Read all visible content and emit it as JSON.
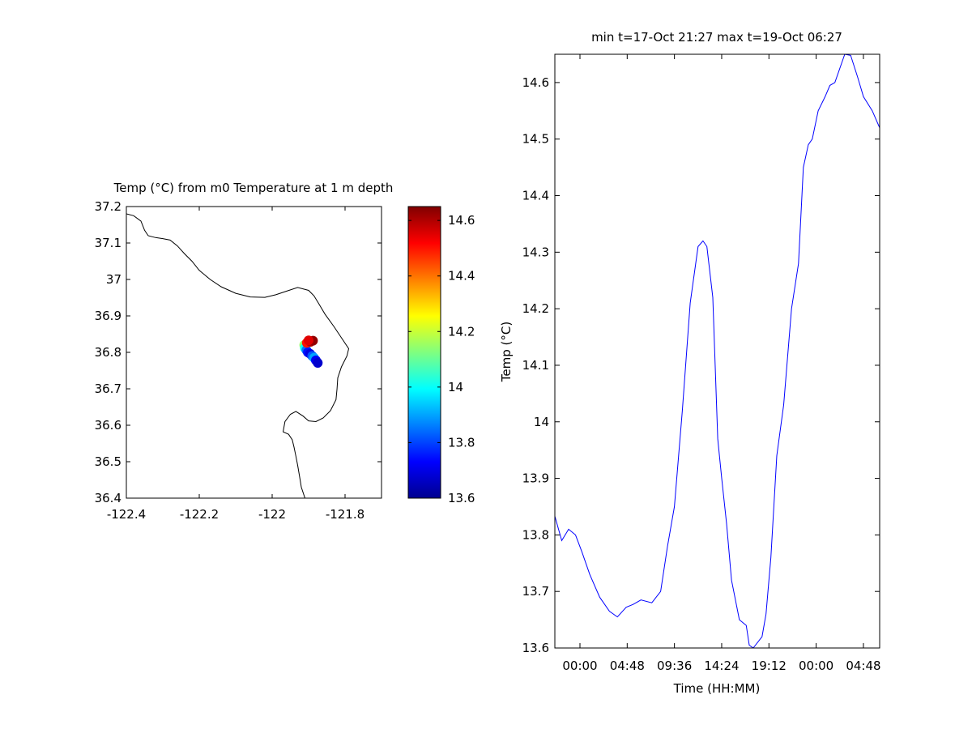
{
  "chart_data": [
    {
      "type": "scatter",
      "title": "Temp (°C) from m0 Temperature at 1 m depth",
      "xlim": [
        -122.4,
        -121.7
      ],
      "ylim": [
        36.4,
        37.2
      ],
      "xticks": [
        -122.4,
        -122.2,
        -122,
        -121.8
      ],
      "xtick_labels": [
        "-122.4",
        "-122.2",
        "-122",
        "-121.8"
      ],
      "yticks": [
        36.4,
        36.5,
        36.6,
        36.7,
        36.8,
        36.9,
        37.0,
        37.1,
        37.2
      ],
      "ytick_labels": [
        "36.4",
        "36.5",
        "36.6",
        "36.7",
        "36.8",
        "36.9",
        "37",
        "37.1",
        "37.2"
      ],
      "points": [
        {
          "lon": -121.912,
          "lat": 36.82,
          "temp": 14.15
        },
        {
          "lon": -121.91,
          "lat": 36.812,
          "temp": 14.0
        },
        {
          "lon": -121.906,
          "lat": 36.806,
          "temp": 13.85
        },
        {
          "lon": -121.902,
          "lat": 36.8,
          "temp": 13.75
        },
        {
          "lon": -121.896,
          "lat": 36.796,
          "temp": 13.7
        },
        {
          "lon": -121.89,
          "lat": 36.79,
          "temp": 13.82
        },
        {
          "lon": -121.885,
          "lat": 36.785,
          "temp": 13.9
        },
        {
          "lon": -121.88,
          "lat": 36.778,
          "temp": 13.72
        },
        {
          "lon": -121.875,
          "lat": 36.771,
          "temp": 13.68
        },
        {
          "lon": -121.905,
          "lat": 36.826,
          "temp": 14.5
        },
        {
          "lon": -121.895,
          "lat": 36.829,
          "temp": 14.6
        },
        {
          "lon": -121.888,
          "lat": 36.832,
          "temp": 14.63
        },
        {
          "lon": -121.9,
          "lat": 36.833,
          "temp": 14.55
        }
      ],
      "coastline": [
        [
          -122.4,
          37.18
        ],
        [
          -122.38,
          37.175
        ],
        [
          -122.36,
          37.16
        ],
        [
          -122.35,
          37.135
        ],
        [
          -122.34,
          37.12
        ],
        [
          -122.32,
          37.115
        ],
        [
          -122.3,
          37.112
        ],
        [
          -122.28,
          37.108
        ],
        [
          -122.26,
          37.092
        ],
        [
          -122.24,
          37.07
        ],
        [
          -122.22,
          37.05
        ],
        [
          -122.2,
          37.025
        ],
        [
          -122.17,
          37.0
        ],
        [
          -122.14,
          36.98
        ],
        [
          -122.1,
          36.962
        ],
        [
          -122.06,
          36.952
        ],
        [
          -122.02,
          36.951
        ],
        [
          -121.99,
          36.958
        ],
        [
          -121.96,
          36.968
        ],
        [
          -121.93,
          36.978
        ],
        [
          -121.9,
          36.97
        ],
        [
          -121.885,
          36.955
        ],
        [
          -121.87,
          36.93
        ],
        [
          -121.855,
          36.905
        ],
        [
          -121.83,
          36.87
        ],
        [
          -121.81,
          36.84
        ],
        [
          -121.79,
          36.81
        ],
        [
          -121.795,
          36.79
        ],
        [
          -121.81,
          36.76
        ],
        [
          -121.82,
          36.73
        ],
        [
          -121.822,
          36.7
        ],
        [
          -121.825,
          36.67
        ],
        [
          -121.84,
          36.64
        ],
        [
          -121.86,
          36.62
        ],
        [
          -121.88,
          36.61
        ],
        [
          -121.9,
          36.612
        ],
        [
          -121.915,
          36.625
        ],
        [
          -121.935,
          36.638
        ],
        [
          -121.95,
          36.63
        ],
        [
          -121.965,
          36.61
        ],
        [
          -121.97,
          36.582
        ],
        [
          -121.955,
          36.575
        ],
        [
          -121.945,
          36.56
        ],
        [
          -121.94,
          36.54
        ],
        [
          -121.935,
          36.515
        ],
        [
          -121.93,
          36.49
        ],
        [
          -121.925,
          36.46
        ],
        [
          -121.92,
          36.43
        ],
        [
          -121.91,
          36.4
        ]
      ],
      "colorbar": {
        "clim": [
          13.6,
          14.65
        ],
        "ticks": [
          13.6,
          13.8,
          14.0,
          14.2,
          14.4,
          14.6
        ],
        "tick_labels": [
          "13.6",
          "13.8",
          "14",
          "14.2",
          "14.4",
          "14.6"
        ]
      }
    },
    {
      "type": "line",
      "title": "min t=17-Oct 21:27 max t=19-Oct 06:27",
      "xlabel": "Time (HH:MM)",
      "ylabel": "Temp (°C)",
      "xlim": [
        -2.55,
        30.45
      ],
      "ylim": [
        13.6,
        14.65
      ],
      "xticks": [
        0,
        4.8,
        9.6,
        14.4,
        19.2,
        24,
        28.8
      ],
      "xtick_labels": [
        "00:00",
        "04:48",
        "09:36",
        "14:24",
        "19:12",
        "00:00",
        "04:48"
      ],
      "yticks": [
        13.6,
        13.7,
        13.8,
        13.9,
        14.0,
        14.1,
        14.2,
        14.3,
        14.4,
        14.5,
        14.6
      ],
      "ytick_labels": [
        "13.6",
        "13.7",
        "13.8",
        "13.9",
        "14",
        "14.1",
        "14.2",
        "14.3",
        "14.4",
        "14.5",
        "14.6"
      ],
      "series": [
        {
          "color": "#0000ff",
          "x": [
            -2.55,
            -1.85,
            -1.15,
            -0.45,
            0.2,
            1.0,
            2.0,
            3.0,
            3.8,
            4.7,
            5.4,
            6.2,
            7.3,
            8.2,
            8.9,
            9.6,
            10.4,
            11.2,
            12.0,
            12.5,
            12.9,
            13.5,
            14.0,
            14.4,
            14.9,
            15.4,
            16.2,
            16.9,
            17.2,
            17.6,
            18.5,
            18.9,
            19.4,
            20.0,
            20.7,
            21.5,
            22.2,
            22.7,
            23.2,
            23.6,
            24.2,
            24.9,
            25.4,
            25.9,
            26.9,
            27.5,
            28.2,
            28.8,
            29.7,
            30.45
          ],
          "y": [
            13.833,
            13.79,
            13.81,
            13.8,
            13.77,
            13.73,
            13.69,
            13.665,
            13.655,
            13.672,
            13.677,
            13.685,
            13.68,
            13.7,
            13.78,
            13.85,
            14.02,
            14.21,
            14.31,
            14.32,
            14.31,
            14.22,
            13.97,
            13.9,
            13.82,
            13.72,
            13.65,
            13.64,
            13.605,
            13.6,
            13.62,
            13.66,
            13.76,
            13.94,
            14.03,
            14.2,
            14.28,
            14.45,
            14.49,
            14.5,
            14.55,
            14.575,
            14.595,
            14.6,
            14.65,
            14.648,
            14.61,
            14.575,
            14.55,
            14.52
          ]
        }
      ]
    }
  ]
}
